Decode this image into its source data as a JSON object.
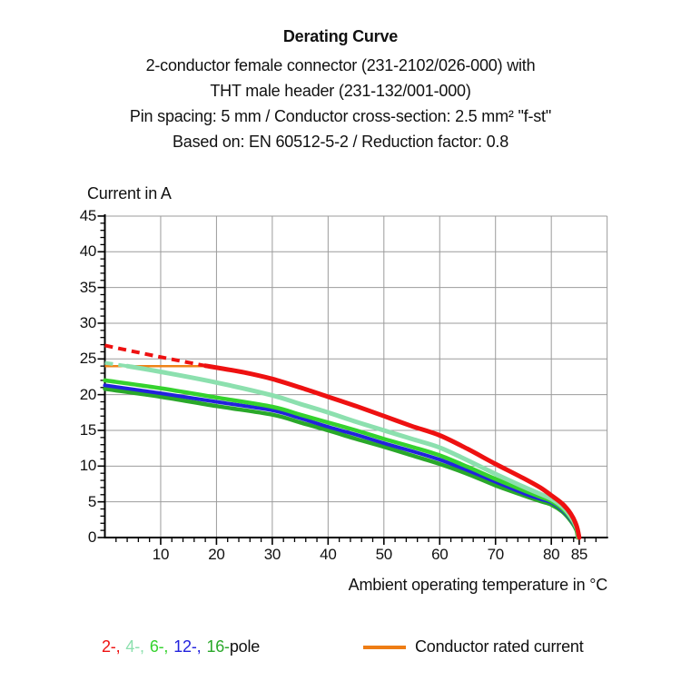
{
  "chart_data": {
    "type": "line",
    "title": "Derating Curve",
    "subtitles": [
      "2-conductor female connector (231-2102/026-000) with",
      "THT male header (231-132/001-000)",
      "Pin spacing: 5 mm / Conductor cross-section: 2.5 mm² \"f-st\"",
      "Based on: EN 60512-5-2 / Reduction factor: 0.8"
    ],
    "ylabel": "Current in A",
    "xlabel": "Ambient operating temperature in °C",
    "xlim": [
      0,
      90
    ],
    "ylim": [
      0,
      45
    ],
    "grid": true,
    "grid_color": "#9b9b9b",
    "axis_color": "#000000",
    "x_major_ticks": [
      10,
      20,
      30,
      40,
      50,
      60,
      70,
      80,
      85
    ],
    "x_gridlines": [
      10,
      20,
      30,
      40,
      50,
      60,
      70,
      80,
      90
    ],
    "x_minor_step": 2,
    "y_major_ticks": [
      0,
      5,
      10,
      15,
      20,
      25,
      30,
      35,
      40,
      45
    ],
    "y_gridlines": [
      5,
      10,
      15,
      20,
      25,
      30,
      35,
      40,
      45
    ],
    "y_minor_step": 1,
    "series": [
      {
        "name": "2-pole",
        "color": "#ee1111",
        "width": 5,
        "dashed": [
          [
            0,
            26.9
          ],
          [
            6,
            25.9
          ],
          [
            12,
            24.95
          ],
          [
            18,
            24.05
          ]
        ],
        "points": [
          [
            18,
            24.05
          ],
          [
            25,
            23.1
          ],
          [
            30,
            22.2
          ],
          [
            35,
            21.0
          ],
          [
            40,
            19.7
          ],
          [
            45,
            18.4
          ],
          [
            50,
            17.0
          ],
          [
            55,
            15.6
          ],
          [
            60,
            14.3
          ],
          [
            65,
            12.4
          ],
          [
            70,
            10.3
          ],
          [
            75,
            8.3
          ],
          [
            78,
            7.0
          ],
          [
            80,
            5.9
          ],
          [
            82,
            4.7
          ],
          [
            83.5,
            3.3
          ],
          [
            84.5,
            1.7
          ],
          [
            85,
            0
          ]
        ]
      },
      {
        "name": "4-pole",
        "color": "#8ce0ae",
        "width": 5,
        "dashed": [
          [
            0,
            24.45
          ],
          [
            4,
            24.0
          ]
        ],
        "points": [
          [
            4,
            24.0
          ],
          [
            10,
            23.2
          ],
          [
            20,
            21.7
          ],
          [
            30,
            19.9
          ],
          [
            35,
            18.7
          ],
          [
            40,
            17.5
          ],
          [
            45,
            16.2
          ],
          [
            50,
            15.0
          ],
          [
            55,
            13.8
          ],
          [
            60,
            12.6
          ],
          [
            65,
            10.8
          ],
          [
            70,
            8.9
          ],
          [
            75,
            7.1
          ],
          [
            78,
            6.1
          ],
          [
            80,
            5.4
          ],
          [
            82,
            4.3
          ],
          [
            83.5,
            2.9
          ],
          [
            84.6,
            1.3
          ],
          [
            84.9,
            0
          ]
        ]
      },
      {
        "name": "6-pole",
        "color": "#35d22e",
        "width": 4.5,
        "points": [
          [
            0,
            22.0
          ],
          [
            10,
            20.9
          ],
          [
            20,
            19.6
          ],
          [
            30,
            18.3
          ],
          [
            35,
            17.2
          ],
          [
            40,
            16.1
          ],
          [
            45,
            15.0
          ],
          [
            50,
            13.8
          ],
          [
            55,
            12.7
          ],
          [
            60,
            11.5
          ],
          [
            65,
            9.9
          ],
          [
            70,
            8.2
          ],
          [
            75,
            6.6
          ],
          [
            78,
            5.7
          ],
          [
            80,
            5.1
          ],
          [
            82,
            4.0
          ],
          [
            83.5,
            2.7
          ],
          [
            84.5,
            1.2
          ],
          [
            84.8,
            0
          ]
        ]
      },
      {
        "name": "12-pole",
        "color": "#2222dd",
        "width": 4,
        "points": [
          [
            0,
            21.3
          ],
          [
            10,
            20.2
          ],
          [
            20,
            19.0
          ],
          [
            30,
            17.8
          ],
          [
            35,
            16.7
          ],
          [
            40,
            15.5
          ],
          [
            45,
            14.4
          ],
          [
            50,
            13.2
          ],
          [
            55,
            12.1
          ],
          [
            60,
            10.9
          ],
          [
            65,
            9.4
          ],
          [
            70,
            7.8
          ],
          [
            75,
            6.2
          ],
          [
            78,
            5.4
          ],
          [
            80,
            4.9
          ],
          [
            82,
            3.8
          ],
          [
            83.5,
            2.5
          ],
          [
            84.5,
            1.1
          ],
          [
            84.8,
            0
          ]
        ]
      },
      {
        "name": "16-pole",
        "color": "#2aa82a",
        "width": 4.5,
        "points": [
          [
            0,
            20.8
          ],
          [
            10,
            19.7
          ],
          [
            20,
            18.4
          ],
          [
            30,
            17.2
          ],
          [
            35,
            16.1
          ],
          [
            40,
            15.0
          ],
          [
            45,
            13.8
          ],
          [
            50,
            12.7
          ],
          [
            55,
            11.5
          ],
          [
            60,
            10.3
          ],
          [
            65,
            8.9
          ],
          [
            70,
            7.3
          ],
          [
            75,
            5.9
          ],
          [
            78,
            5.1
          ],
          [
            80,
            4.6
          ],
          [
            82,
            3.6
          ],
          [
            83.5,
            2.3
          ],
          [
            84.5,
            1.0
          ],
          [
            84.7,
            0
          ]
        ]
      }
    ],
    "rated_current_line": {
      "name": "Conductor rated current",
      "color": "#ef8318",
      "width": 2.5,
      "points": [
        [
          0,
          24
        ],
        [
          18.5,
          24
        ]
      ]
    },
    "legend": {
      "poles": [
        {
          "label": "2-,",
          "color": "#ee1111"
        },
        {
          "label": "4-,",
          "color": "#8ce0ae"
        },
        {
          "label": "6-,",
          "color": "#35d22e"
        },
        {
          "label": "12-,",
          "color": "#2222dd"
        },
        {
          "label": "16-",
          "color": "#2aa82a"
        }
      ],
      "suffix": "pole",
      "rated_label": "Conductor rated current",
      "rated_color": "#ee7d15"
    }
  }
}
